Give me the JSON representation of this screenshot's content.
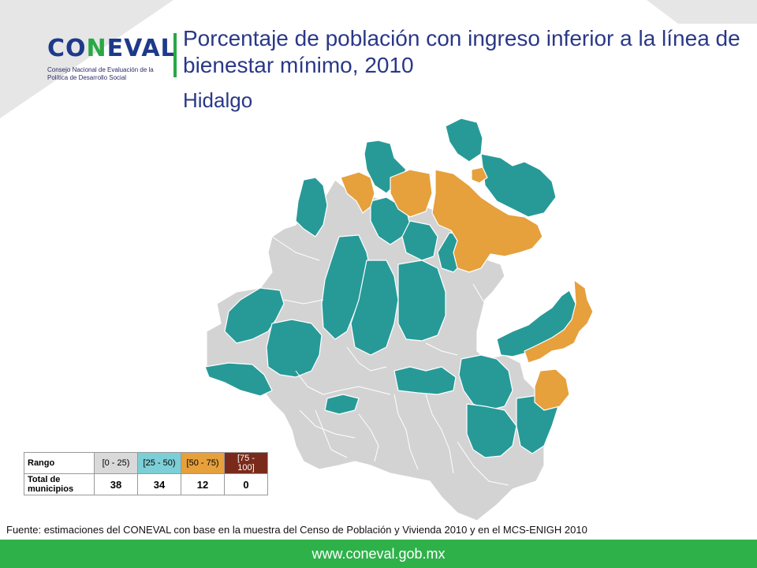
{
  "header": {
    "logo_text_1": "CO",
    "logo_text_2": "N",
    "logo_text_3": "EVAL",
    "logo_subtitle": "Consejo Nacional de Evaluación de la Política de Desarrollo Social",
    "title": "Porcentaje de población con ingreso inferior a la línea de bienestar mínimo, 2010",
    "subtitle": "Hidalgo"
  },
  "legend": {
    "row1_label": "Rango",
    "row2_label": "Total de municipios",
    "ranges": [
      {
        "label": "[0 - 25)",
        "count": "38",
        "color": "#d9d9d9"
      },
      {
        "label": "[25 - 50)",
        "count": "34",
        "color": "#7ccfd6"
      },
      {
        "label": "[50 - 75)",
        "count": "12",
        "color": "#e6a03c"
      },
      {
        "label": "[75 - 100]",
        "count": "0",
        "color": "#7a2a1a"
      }
    ]
  },
  "map_colors": {
    "low": "#d3d3d3",
    "mid": "#279a98",
    "high": "#e6a03c",
    "border": "#ffffff"
  },
  "source": "Fuente: estimaciones del CONEVAL con base en la muestra del Censo de Población y Vivienda 2010 y en el MCS-ENIGH 2010",
  "footer": {
    "url": "www.coneval.gob.mx",
    "color": "#2fb14a"
  }
}
